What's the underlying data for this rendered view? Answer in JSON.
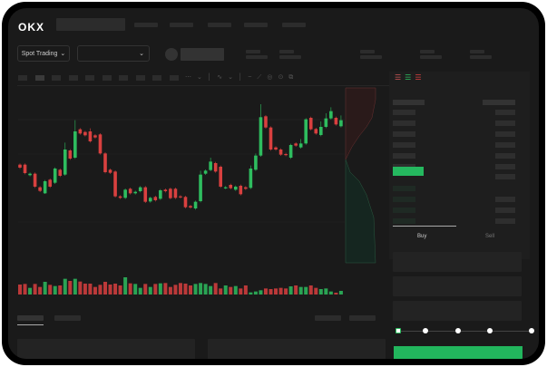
{
  "header": {
    "logo": "OKX"
  },
  "toolbar": {
    "market_selector": "Spot Trading",
    "pair_selector": ""
  },
  "trade": {
    "buy_label": "Buy",
    "sell_label": "Sell",
    "leverage_steps": 5,
    "selected_step": 0
  },
  "colors": {
    "up": "#2ebd5f",
    "down": "#d9403f",
    "bg": "#1a1a1a"
  },
  "chart_data": {
    "type": "candlestick",
    "candles": [
      {
        "o": 185,
        "c": 175
      },
      {
        "o": 185,
        "c": 157
      },
      {
        "o": 150,
        "c": 155
      },
      {
        "o": 155,
        "c": 112
      },
      {
        "o": 110,
        "c": 98
      },
      {
        "o": 90,
        "c": 130,
        "l": 88
      },
      {
        "o": 135,
        "c": 112
      },
      {
        "o": 125,
        "c": 172
      },
      {
        "o": 168,
        "c": 148
      },
      {
        "o": 152,
        "c": 235,
        "h": 258
      },
      {
        "o": 232,
        "c": 205
      },
      {
        "o": 208,
        "c": 295,
        "h": 332
      },
      {
        "o": 302,
        "c": 288
      },
      {
        "o": 293,
        "c": 282
      },
      {
        "o": 295,
        "c": 262,
        "h": 305
      },
      {
        "o": 282,
        "c": 275
      },
      {
        "o": 285,
        "c": 222
      },
      {
        "o": 222,
        "c": 160
      },
      {
        "o": 168,
        "c": 158
      },
      {
        "o": 162,
        "c": 80
      },
      {
        "o": 80,
        "c": 75
      },
      {
        "o": 75,
        "c": 102
      },
      {
        "o": 105,
        "c": 90
      },
      {
        "o": 90,
        "c": 95
      },
      {
        "o": 97,
        "c": 110
      },
      {
        "o": 110,
        "c": 62
      },
      {
        "o": 63,
        "c": 75
      },
      {
        "o": 78,
        "c": 67
      },
      {
        "o": 72,
        "c": 100
      },
      {
        "o": 102,
        "c": 97
      },
      {
        "o": 105,
        "c": 74
      },
      {
        "o": 105,
        "c": 75
      },
      {
        "o": 80,
        "c": 77
      },
      {
        "o": 78,
        "c": 44
      },
      {
        "o": 48,
        "c": 43
      },
      {
        "o": 40,
        "c": 62
      },
      {
        "o": 64,
        "c": 152,
        "h": 165
      },
      {
        "o": 155,
        "c": 165
      },
      {
        "o": 167,
        "c": 195,
        "h": 208
      },
      {
        "o": 190,
        "c": 162
      },
      {
        "o": 178,
        "c": 112
      },
      {
        "o": 108,
        "c": 110
      },
      {
        "o": 118,
        "c": 107
      },
      {
        "o": 102,
        "c": 112
      },
      {
        "o": 115,
        "c": 87
      },
      {
        "o": 110,
        "c": 105
      },
      {
        "o": 108,
        "c": 172,
        "h": 182
      },
      {
        "o": 168,
        "c": 215,
        "h": 222
      },
      {
        "o": 215,
        "c": 342,
        "h": 385
      },
      {
        "o": 345,
        "c": 308
      },
      {
        "o": 308,
        "c": 235
      },
      {
        "o": 242,
        "c": 235
      },
      {
        "o": 235,
        "c": 218
      },
      {
        "o": 220,
        "c": 217
      },
      {
        "o": 208,
        "c": 250
      },
      {
        "o": 255,
        "c": 248
      },
      {
        "o": 242,
        "c": 255,
        "h": 270
      },
      {
        "o": 255,
        "c": 335
      },
      {
        "o": 340,
        "c": 302
      },
      {
        "o": 303,
        "c": 288
      },
      {
        "o": 283,
        "c": 310,
        "h": 328
      },
      {
        "o": 310,
        "c": 338,
        "h": 355
      },
      {
        "o": 338,
        "c": 362,
        "h": 375
      },
      {
        "o": 340,
        "c": 318
      },
      {
        "o": 312,
        "c": 332,
        "h": 348
      }
    ],
    "volume": [
      33,
      35,
      22,
      35,
      25,
      42,
      32,
      28,
      30,
      52,
      45,
      52,
      43,
      36,
      36,
      25,
      32,
      42,
      33,
      36,
      30,
      57,
      37,
      35,
      22,
      35,
      25,
      35,
      37,
      38,
      25,
      32,
      38,
      36,
      30,
      35,
      38,
      35,
      28,
      38,
      20,
      30,
      25,
      28,
      20,
      30,
      7,
      10,
      14,
      20,
      18,
      20,
      22,
      20,
      27,
      30,
      25,
      25,
      30,
      22,
      18,
      20,
      10,
      6,
      12
    ]
  }
}
